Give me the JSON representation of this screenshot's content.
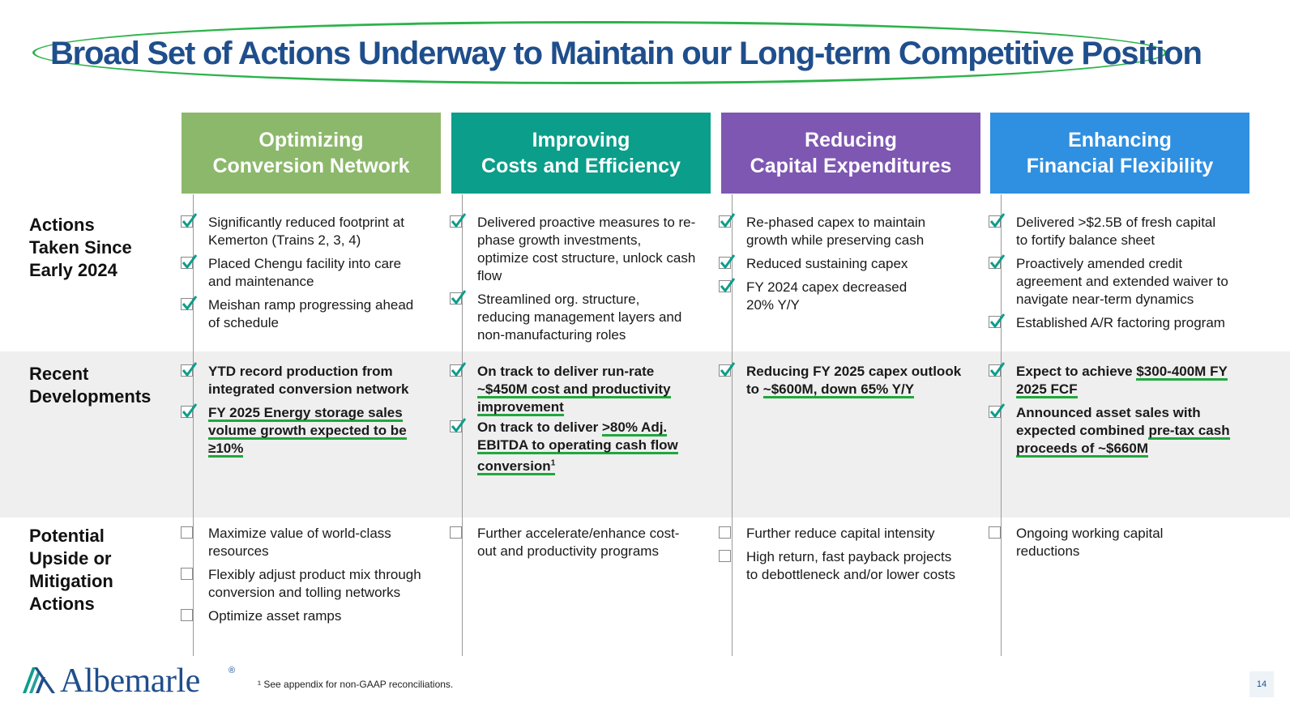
{
  "title": "Broad Set of Actions Underway to Maintain our Long-term Competitive Position",
  "columns": [
    {
      "line1": "Optimizing",
      "line2": "Conversion Network",
      "color": "#8cb86b"
    },
    {
      "line1": "Improving",
      "line2": "Costs and Efficiency",
      "color": "#0b9e8a"
    },
    {
      "line1": "Reducing",
      "line2": "Capital Expenditures",
      "color": "#7e57b2"
    },
    {
      "line1": "Enhancing",
      "line2": "Financial Flexibility",
      "color": "#2f8fe0"
    }
  ],
  "row_labels": {
    "actions": [
      "Actions",
      "Taken Since",
      "Early 2024"
    ],
    "recent": [
      "Recent",
      "Developments"
    ],
    "upside": [
      "Potential",
      "Upside or",
      "Mitigation",
      "Actions"
    ]
  },
  "actions": {
    "c1": [
      [
        "Significantly reduced footprint at",
        "Kemerton (Trains 2, 3, 4)"
      ],
      [
        "Placed Chengu facility into care",
        "and maintenance"
      ],
      [
        "Meishan ramp progressing ahead",
        "of schedule"
      ]
    ],
    "c2": [
      [
        "Delivered proactive measures to re-",
        "phase growth investments,",
        "optimize cost structure, unlock cash",
        "flow"
      ],
      [
        "Streamlined org. structure,",
        "reducing management layers and",
        "non-manufacturing roles"
      ]
    ],
    "c3": [
      [
        "Re-phased capex to maintain",
        "growth while preserving cash"
      ],
      [
        "Reduced sustaining capex"
      ],
      [
        "FY 2024 capex decreased",
        "20% Y/Y"
      ]
    ],
    "c4": [
      [
        "Delivered >$2.5B of fresh capital",
        "to fortify balance sheet"
      ],
      [
        "Proactively amended credit",
        "agreement and extended waiver to",
        "navigate near-term dynamics"
      ],
      [
        "Established A/R factoring program"
      ]
    ]
  },
  "recent": {
    "c1": {
      "i1": [
        "YTD record production from",
        "integrated conversion network"
      ],
      "i2": [
        "FY 2025 Energy storage sales",
        "volume growth expected to be",
        "≥10%"
      ]
    },
    "c2": {
      "i1a": "On track to deliver run-rate",
      "i1b": "~$450M cost and productivity",
      "i1c": "improvement",
      "i2a": "On track to deliver ",
      "i2b": ">80% Adj.",
      "i2c": "EBITDA to operating cash flow",
      "i2d": "conversion",
      "i2sup": "1"
    },
    "c3": {
      "a": "Reducing FY 2025 capex outlook",
      "b": "to ",
      "c": "~$600M, down 65% Y/Y"
    },
    "c4": {
      "i1a": "Expect to achieve ",
      "i1b": "$300-400M FY",
      "i1c": "2025 FCF",
      "i2a": "Announced asset sales with",
      "i2b": "expected combined ",
      "i2c": "pre-tax cash",
      "i2d": "proceeds of ~$660M"
    }
  },
  "upside": {
    "c1": [
      [
        "Maximize value of world-class",
        "resources"
      ],
      [
        "Flexibly adjust product mix through",
        "conversion and tolling networks"
      ],
      [
        "Optimize asset ramps"
      ]
    ],
    "c2": [
      [
        "Further accelerate/enhance cost-",
        "out and productivity programs"
      ]
    ],
    "c3": [
      [
        "Further reduce capital intensity"
      ],
      [
        "High return, fast payback projects",
        "to debottleneck and/or lower costs"
      ]
    ],
    "c4": [
      [
        "Ongoing working capital",
        "reductions"
      ]
    ]
  },
  "footer": {
    "logo": "Albemarle",
    "reg": "®",
    "footnote": "¹ See appendix for non-GAAP reconciliations.",
    "page": "14"
  }
}
